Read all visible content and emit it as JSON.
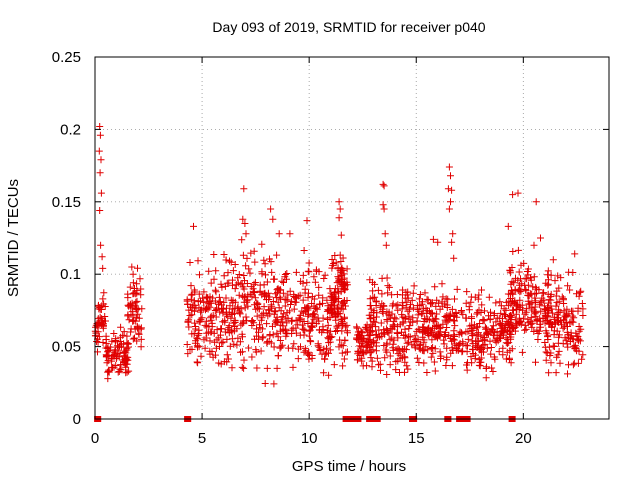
{
  "chart_data": {
    "type": "scatter",
    "title": "Day 093 of 2019, SRMTID for receiver p040",
    "xlabel": "GPS time / hours",
    "ylabel": "SRMTID / TECUs",
    "xlim": [
      0,
      24
    ],
    "ylim": [
      0,
      0.25
    ],
    "x_ticks": [
      0,
      5,
      10,
      15,
      20
    ],
    "x_tick_labels": [
      "0",
      "5",
      "10",
      "15",
      "20"
    ],
    "y_ticks": [
      0,
      0.05,
      0.1,
      0.15,
      0.2,
      0.25
    ],
    "y_tick_labels": [
      "0",
      "0.05",
      "0.1",
      "0.15",
      "0.2",
      "0.25"
    ],
    "grid": true,
    "marker": "plus",
    "color": "#e00000",
    "series": [
      {
        "name": "SRMTID",
        "clusters": [
          {
            "x_start": 0.0,
            "x_end": 0.15,
            "y_min": 0.04,
            "y_max": 0.075
          },
          {
            "x_start": 0.15,
            "x_end": 0.5,
            "y_min": 0.05,
            "y_max": 0.092
          },
          {
            "x_start": 0.5,
            "x_end": 1.6,
            "y_min": 0.025,
            "y_max": 0.065
          },
          {
            "x_start": 1.5,
            "x_end": 2.2,
            "y_min": 0.045,
            "y_max": 0.105
          },
          {
            "x_start": 4.3,
            "x_end": 5.5,
            "y_min": 0.03,
            "y_max": 0.11
          },
          {
            "x_start": 5.5,
            "x_end": 8.5,
            "y_min": 0.025,
            "y_max": 0.125
          },
          {
            "x_start": 8.5,
            "x_end": 11.8,
            "y_min": 0.025,
            "y_max": 0.115
          },
          {
            "x_start": 11.0,
            "x_end": 11.7,
            "y_min": 0.06,
            "y_max": 0.125
          },
          {
            "x_start": 12.2,
            "x_end": 13.0,
            "y_min": 0.035,
            "y_max": 0.07
          },
          {
            "x_start": 12.8,
            "x_end": 14.9,
            "y_min": 0.025,
            "y_max": 0.105
          },
          {
            "x_start": 14.9,
            "x_end": 17.2,
            "y_min": 0.03,
            "y_max": 0.095
          },
          {
            "x_start": 17.3,
            "x_end": 19.5,
            "y_min": 0.025,
            "y_max": 0.095
          },
          {
            "x_start": 19.3,
            "x_end": 21.2,
            "y_min": 0.04,
            "y_max": 0.12
          },
          {
            "x_start": 21.0,
            "x_end": 22.8,
            "y_min": 0.025,
            "y_max": 0.105
          }
        ],
        "outliers": [
          {
            "x": 0.22,
            "y": 0.202
          },
          {
            "x": 0.25,
            "y": 0.196
          },
          {
            "x": 0.2,
            "y": 0.185
          },
          {
            "x": 0.28,
            "y": 0.179
          },
          {
            "x": 0.24,
            "y": 0.17
          },
          {
            "x": 0.3,
            "y": 0.156
          },
          {
            "x": 0.22,
            "y": 0.144
          },
          {
            "x": 0.26,
            "y": 0.12
          },
          {
            "x": 0.33,
            "y": 0.112
          },
          {
            "x": 0.36,
            "y": 0.104
          },
          {
            "x": 1.72,
            "y": 0.105
          },
          {
            "x": 1.78,
            "y": 0.1
          },
          {
            "x": 4.6,
            "y": 0.133
          },
          {
            "x": 6.95,
            "y": 0.159
          },
          {
            "x": 6.9,
            "y": 0.138
          },
          {
            "x": 7.0,
            "y": 0.135
          },
          {
            "x": 7.05,
            "y": 0.128
          },
          {
            "x": 8.2,
            "y": 0.145
          },
          {
            "x": 8.3,
            "y": 0.138
          },
          {
            "x": 8.6,
            "y": 0.128
          },
          {
            "x": 9.1,
            "y": 0.128
          },
          {
            "x": 9.9,
            "y": 0.137
          },
          {
            "x": 11.4,
            "y": 0.15
          },
          {
            "x": 11.45,
            "y": 0.145
          },
          {
            "x": 11.4,
            "y": 0.139
          },
          {
            "x": 11.5,
            "y": 0.127
          },
          {
            "x": 13.45,
            "y": 0.162
          },
          {
            "x": 13.5,
            "y": 0.161
          },
          {
            "x": 13.45,
            "y": 0.148
          },
          {
            "x": 13.5,
            "y": 0.145
          },
          {
            "x": 13.55,
            "y": 0.128
          },
          {
            "x": 13.6,
            "y": 0.12
          },
          {
            "x": 15.8,
            "y": 0.124
          },
          {
            "x": 16.0,
            "y": 0.122
          },
          {
            "x": 16.55,
            "y": 0.174
          },
          {
            "x": 16.6,
            "y": 0.168
          },
          {
            "x": 16.5,
            "y": 0.159
          },
          {
            "x": 16.65,
            "y": 0.158
          },
          {
            "x": 16.6,
            "y": 0.15
          },
          {
            "x": 16.55,
            "y": 0.145
          },
          {
            "x": 16.7,
            "y": 0.128
          },
          {
            "x": 16.65,
            "y": 0.122
          },
          {
            "x": 16.75,
            "y": 0.111
          },
          {
            "x": 19.5,
            "y": 0.155
          },
          {
            "x": 19.75,
            "y": 0.156
          },
          {
            "x": 19.3,
            "y": 0.133
          },
          {
            "x": 20.6,
            "y": 0.15
          },
          {
            "x": 20.8,
            "y": 0.125
          },
          {
            "x": 20.5,
            "y": 0.12
          },
          {
            "x": 21.4,
            "y": 0.11
          },
          {
            "x": 22.4,
            "y": 0.114
          }
        ],
        "zero_values_x": [
          0.1,
          0.15,
          4.3,
          4.35,
          11.7,
          11.8,
          11.9,
          12.0,
          12.15,
          12.2,
          12.3,
          12.8,
          12.9,
          13.1,
          13.2,
          14.8,
          14.9,
          16.45,
          16.5,
          17.0,
          17.1,
          17.2,
          17.3,
          17.4,
          19.45,
          19.5
        ]
      }
    ]
  }
}
